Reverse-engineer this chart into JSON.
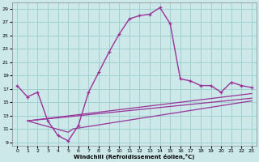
{
  "xlabel": "Windchill (Refroidissement éolien,°C)",
  "bg_color": "#cce8e8",
  "grid_color": "#99cccc",
  "line_color": "#993399",
  "xlim": [
    -0.5,
    23.5
  ],
  "ylim": [
    8.5,
    30.0
  ],
  "yticks": [
    9,
    11,
    13,
    15,
    17,
    19,
    21,
    23,
    25,
    27,
    29
  ],
  "xticks": [
    0,
    1,
    2,
    3,
    4,
    5,
    6,
    7,
    8,
    9,
    10,
    11,
    12,
    13,
    14,
    15,
    16,
    17,
    18,
    19,
    20,
    21,
    22,
    23
  ],
  "curve1_x": [
    0,
    1,
    2,
    3,
    4,
    5,
    6,
    7,
    8,
    9,
    10,
    11,
    12,
    13,
    14,
    15,
    16,
    17,
    18,
    19,
    20,
    21,
    22,
    23
  ],
  "curve1_y": [
    17.5,
    15.8,
    16.5,
    12.2,
    10.0,
    9.2,
    11.5,
    16.5,
    19.5,
    22.5,
    25.2,
    27.5,
    28.0,
    28.2,
    29.2,
    26.8,
    18.5,
    18.2,
    17.5,
    17.5,
    16.5,
    18.0,
    17.5,
    17.2
  ],
  "line2_x": [
    1,
    23
  ],
  "line2_y": [
    12.2,
    16.3
  ],
  "line3_x": [
    1,
    23
  ],
  "line3_y": [
    12.2,
    15.6
  ],
  "line4_x": [
    1,
    5,
    5.5,
    23
  ],
  "line4_y": [
    12.2,
    10.5,
    11.0,
    15.2
  ]
}
